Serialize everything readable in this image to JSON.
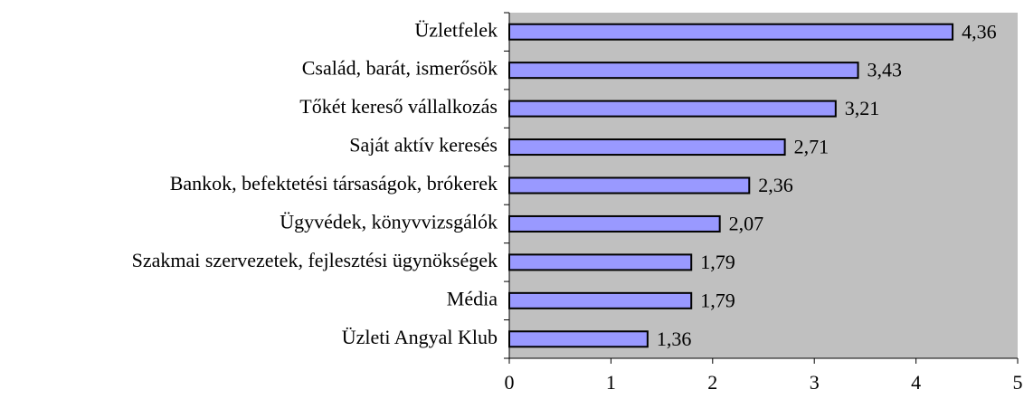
{
  "chart_data": {
    "type": "hbar",
    "categories": [
      "Üzletfelek",
      "Család, barát, ismerősök",
      "Tőkét kereső vállalkozás",
      "Saját aktív keresés",
      "Bankok, befektetési társaságok, brókerek",
      "Ügyvédek, könyvvizsgálók",
      "Szakmai szervezetek, fejlesztési ügynökségek",
      "Média",
      "Üzleti Angyal Klub"
    ],
    "values": [
      4.36,
      3.43,
      3.21,
      2.71,
      2.36,
      2.07,
      1.79,
      1.79,
      1.36
    ],
    "value_labels": [
      "4,36",
      "3,43",
      "3,21",
      "2,71",
      "2,36",
      "2,07",
      "1,79",
      "1,79",
      "1,36"
    ],
    "color": "#9999ff",
    "xlim": [
      0,
      5
    ],
    "xticks": [
      0,
      1,
      2,
      3,
      4,
      5
    ]
  }
}
